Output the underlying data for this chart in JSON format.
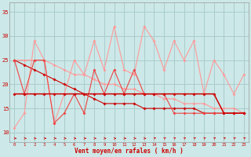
{
  "x": [
    0,
    1,
    2,
    3,
    4,
    5,
    6,
    7,
    8,
    9,
    10,
    11,
    12,
    13,
    14,
    15,
    16,
    17,
    18,
    19,
    20,
    21,
    22,
    23
  ],
  "line_rafales_high": [
    11,
    14,
    29,
    25,
    12,
    18,
    25,
    22,
    29,
    23,
    32,
    23,
    22,
    32,
    29,
    23,
    29,
    25,
    29,
    18,
    25,
    22,
    18,
    22
  ],
  "line_flat_dark": [
    18,
    18,
    18,
    18,
    18,
    18,
    18,
    18,
    18,
    18,
    18,
    18,
    18,
    18,
    18,
    18,
    18,
    18,
    18,
    18,
    18,
    14,
    14,
    14
  ],
  "line_decline_light": [
    25,
    25,
    25,
    25,
    24,
    23,
    22,
    22,
    21,
    20,
    20,
    19,
    19,
    18,
    18,
    17,
    17,
    16,
    16,
    16,
    15,
    15,
    15,
    14
  ],
  "line_decline_dark": [
    25,
    24,
    23,
    22,
    21,
    20,
    19,
    18,
    17,
    16,
    16,
    16,
    16,
    15,
    15,
    15,
    15,
    15,
    15,
    14,
    14,
    14,
    14,
    14
  ],
  "line_zigzag_med": [
    25,
    18,
    25,
    25,
    12,
    14,
    18,
    14,
    23,
    18,
    23,
    18,
    23,
    18,
    18,
    18,
    14,
    14,
    14,
    14,
    14,
    14,
    14,
    14
  ],
  "bg_color": "#cce8e8",
  "grid_color": "#aacccc",
  "c_light_pink": "#ff9999",
  "c_dark_red": "#cc0000",
  "c_med_red": "#ee4444",
  "c_salmon": "#ffaaaa",
  "xlabel": "Vent moyen/en rafales ( km/h )",
  "ylim": [
    8,
    37
  ],
  "xlim": [
    -0.5,
    23.5
  ],
  "yticks": [
    10,
    15,
    20,
    25,
    30,
    35
  ]
}
